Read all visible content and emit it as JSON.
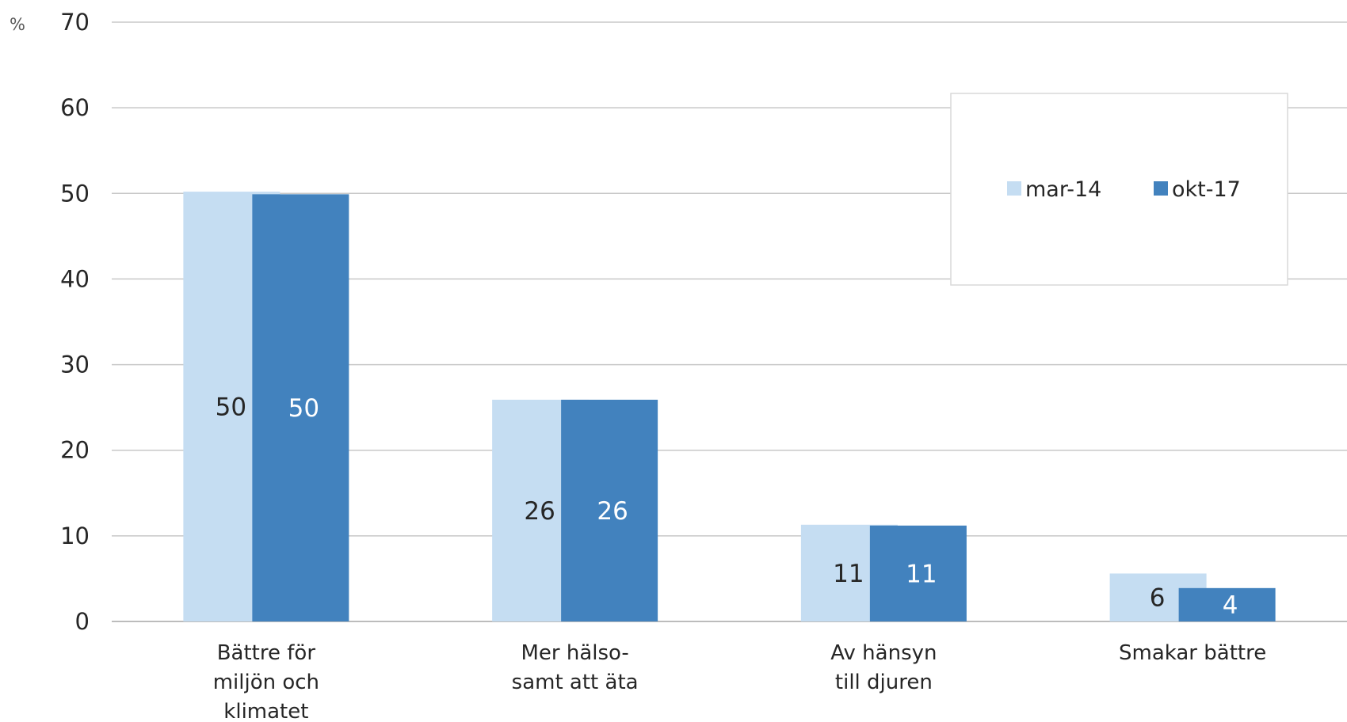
{
  "chart_data": {
    "type": "bar",
    "unit_label": "%",
    "ylim": [
      0,
      70
    ],
    "yticks": [
      "0",
      "10",
      "20",
      "30",
      "40",
      "50",
      "60",
      "70"
    ],
    "grid": true,
    "legend_position": "top-right",
    "categories": [
      [
        "Bättre för",
        "miljön och",
        "klimatet"
      ],
      [
        "Mer hälso-",
        "samt att äta"
      ],
      [
        "Av hänsyn",
        "till djuren"
      ],
      [
        "Smakar bättre"
      ]
    ],
    "series": [
      {
        "name": "mar-14",
        "color": "#c5ddf2",
        "label_color": "#262626",
        "values": [
          50.2,
          25.9,
          11.3,
          5.6
        ],
        "labels": [
          "50",
          "26",
          "11",
          "6"
        ]
      },
      {
        "name": "okt-17",
        "color": "#4282be",
        "label_color": "#ffffff",
        "values": [
          49.9,
          25.9,
          11.2,
          3.9
        ],
        "labels": [
          "50",
          "26",
          "11",
          "4"
        ]
      }
    ]
  }
}
